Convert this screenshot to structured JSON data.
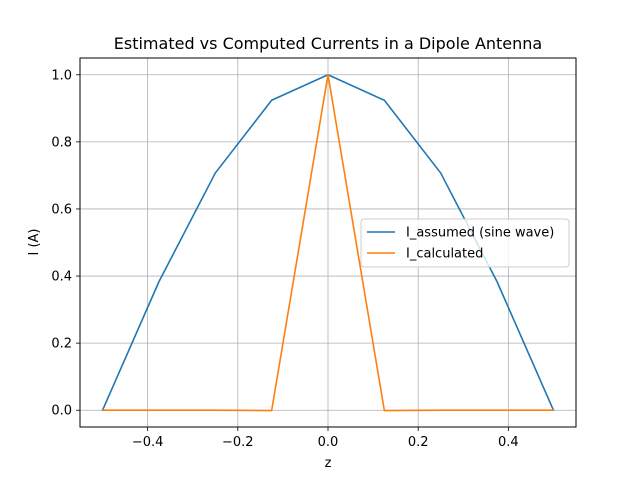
{
  "chart_data": {
    "type": "line",
    "title": "Estimated vs Computed Currents in a Dipole Antenna",
    "xlabel": "z",
    "ylabel": "I (A)",
    "xlim": [
      -0.55,
      0.55
    ],
    "ylim": [
      -0.05,
      1.05
    ],
    "x_ticks": [
      -0.4,
      -0.2,
      0.0,
      0.2,
      0.4
    ],
    "x_tick_labels": [
      "−0.4",
      "−0.2",
      "0.0",
      "0.2",
      "0.4"
    ],
    "y_ticks": [
      0.0,
      0.2,
      0.4,
      0.6,
      0.8,
      1.0
    ],
    "y_tick_labels": [
      "0.0",
      "0.2",
      "0.4",
      "0.6",
      "0.8",
      "1.0"
    ],
    "grid": true,
    "legend_position": "center-right",
    "series": [
      {
        "name": "I_assumed (sine wave)",
        "color": "#1f77b4",
        "x": [
          -0.5,
          -0.375,
          -0.25,
          -0.125,
          0.0,
          0.125,
          0.25,
          0.375,
          0.5
        ],
        "y": [
          0.0,
          0.383,
          0.707,
          0.924,
          1.0,
          0.924,
          0.707,
          0.383,
          0.0
        ]
      },
      {
        "name": "I_calculated",
        "color": "#ff7f0e",
        "x": [
          -0.5,
          -0.375,
          -0.25,
          -0.125,
          0.0,
          0.125,
          0.25,
          0.375,
          0.5
        ],
        "y": [
          0.0,
          0.0,
          0.0,
          -0.001,
          1.0,
          -0.001,
          0.0,
          0.0,
          0.0
        ]
      }
    ]
  }
}
